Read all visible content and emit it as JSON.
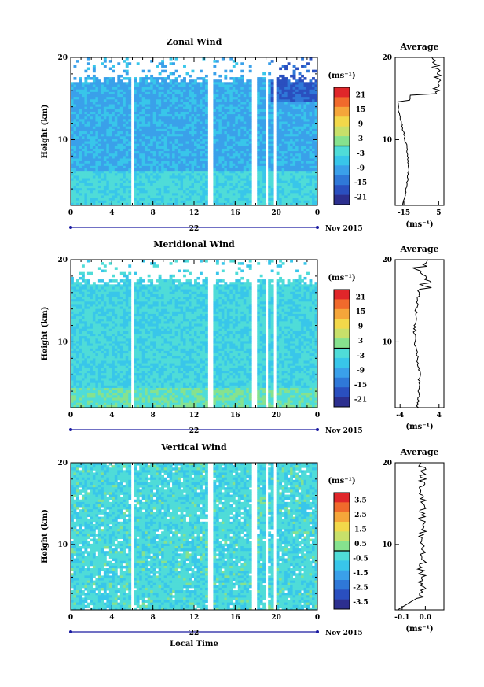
{
  "chart_data": [
    {
      "type": "heatmap",
      "title": "Zonal Wind",
      "ylabel": "Height (km)",
      "ylim": [
        2,
        20
      ],
      "xlim": [
        0,
        24
      ],
      "x_ticks": [
        "0",
        "4",
        "8",
        "12",
        "16",
        "20",
        "0"
      ],
      "y_ticks": [
        "10",
        "20"
      ],
      "date_label": "22",
      "date_suffix": "Nov 2015",
      "colorbar": {
        "unit": "(ms⁻¹)",
        "ticks": [
          "21",
          "15",
          "9",
          "3",
          "-3",
          "-9",
          "-15",
          "-21"
        ],
        "range": [
          -24,
          24
        ]
      },
      "average": {
        "title": "Average",
        "xlabel": "(ms⁻¹)",
        "x_ticks": [
          "-15",
          "5"
        ],
        "xlim": [
          -20,
          8
        ]
      }
    },
    {
      "type": "heatmap",
      "title": "Meridional Wind",
      "ylabel": "Height (km)",
      "ylim": [
        2,
        20
      ],
      "xlim": [
        0,
        24
      ],
      "x_ticks": [
        "0",
        "4",
        "8",
        "12",
        "16",
        "20",
        "0"
      ],
      "y_ticks": [
        "10",
        "20"
      ],
      "date_label": "22",
      "date_suffix": "Nov 2015",
      "colorbar": {
        "unit": "(ms⁻¹)",
        "ticks": [
          "21",
          "15",
          "9",
          "3",
          "-3",
          "-9",
          "-15",
          "-21"
        ],
        "range": [
          -24,
          24
        ]
      },
      "average": {
        "title": "Average",
        "xlabel": "(ms⁻¹)",
        "x_ticks": [
          "-4",
          "4"
        ],
        "xlim": [
          -5,
          5
        ]
      }
    },
    {
      "type": "heatmap",
      "title": "Vertical Wind",
      "ylabel": "Height (km)",
      "xlabel": "Local Time",
      "ylim": [
        2,
        20
      ],
      "xlim": [
        0,
        24
      ],
      "x_ticks": [
        "0",
        "4",
        "8",
        "12",
        "16",
        "20",
        "0"
      ],
      "y_ticks": [
        "10",
        "20"
      ],
      "date_label": "22",
      "date_suffix": "Nov 2015",
      "colorbar": {
        "unit": "(ms⁻¹)",
        "ticks": [
          "3.5",
          "2.5",
          "1.5",
          "0.5",
          "-0.5",
          "-1.5",
          "-2.5",
          "-3.5"
        ],
        "range": [
          -4,
          4
        ]
      },
      "average": {
        "title": "Average",
        "xlabel": "(ms⁻¹)",
        "x_ticks": [
          "-0.1",
          "0.0"
        ],
        "xlim": [
          -0.13,
          0.08
        ]
      }
    }
  ],
  "colors": {
    "palette": [
      "#2c2f8f",
      "#2a4fbf",
      "#2f78d8",
      "#3aa0ea",
      "#38c6ea",
      "#4fdcd8",
      "#86e28e",
      "#c8e06a",
      "#f2d84a",
      "#f5a63a",
      "#f06a2c",
      "#e0262a"
    ]
  }
}
